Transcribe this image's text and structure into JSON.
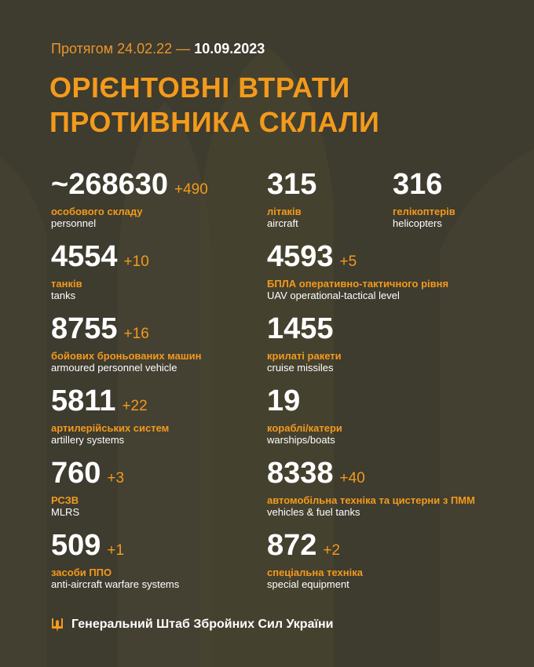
{
  "header": {
    "period_prefix": "Протягом 24.02.22 — ",
    "period_end": "10.09.2023",
    "title_line1": "ОРІЄНТОВНІ ВТРАТИ",
    "title_line2": "ПРОТИВНИКА СКЛАЛИ"
  },
  "left": [
    {
      "value": "~268630",
      "delta": "+490",
      "ua": "особового складу",
      "en": "personnel"
    },
    {
      "value": "4554",
      "delta": "+10",
      "ua": "танків",
      "en": "tanks"
    },
    {
      "value": "8755",
      "delta": "+16",
      "ua": "бойових броньованих машин",
      "en": "armoured personnel vehicle"
    },
    {
      "value": "5811",
      "delta": "+22",
      "ua": "артилерійських систем",
      "en": "artillery systems"
    },
    {
      "value": "760",
      "delta": "+3",
      "ua": "РСЗВ",
      "en": "MLRS"
    },
    {
      "value": "509",
      "delta": "+1",
      "ua": "засоби ППО",
      "en": "anti-aircraft warfare systems"
    }
  ],
  "right": [
    {
      "value": "315",
      "delta": "",
      "ua": "літаків",
      "en": "aircraft"
    },
    {
      "value": "4593",
      "delta": "+5",
      "ua": "БПЛА оперативно-тактичного рівня",
      "en": "UAV operational-tactical level"
    },
    {
      "value": "1455",
      "delta": "",
      "ua": "крилаті ракети",
      "en": "cruise missiles"
    },
    {
      "value": "19",
      "delta": "",
      "ua": "кораблі/катери",
      "en": "warships/boats"
    },
    {
      "value": "8338",
      "delta": "+40",
      "ua": "автомобільна техніка та цистерни з ПММ",
      "en": "vehicles & fuel tanks"
    },
    {
      "value": "872",
      "delta": "+2",
      "ua": "спеціальна техніка",
      "en": "special equipment"
    }
  ],
  "helicopters": {
    "value": "316",
    "delta": "",
    "ua": "гелікоптерів",
    "en": "helicopters"
  },
  "footer": {
    "text": "Генеральний Штаб Збройних Сил України",
    "icon": "trident-icon"
  },
  "colors": {
    "background": "#3e3b2f",
    "accent": "#f39a1c"
  }
}
